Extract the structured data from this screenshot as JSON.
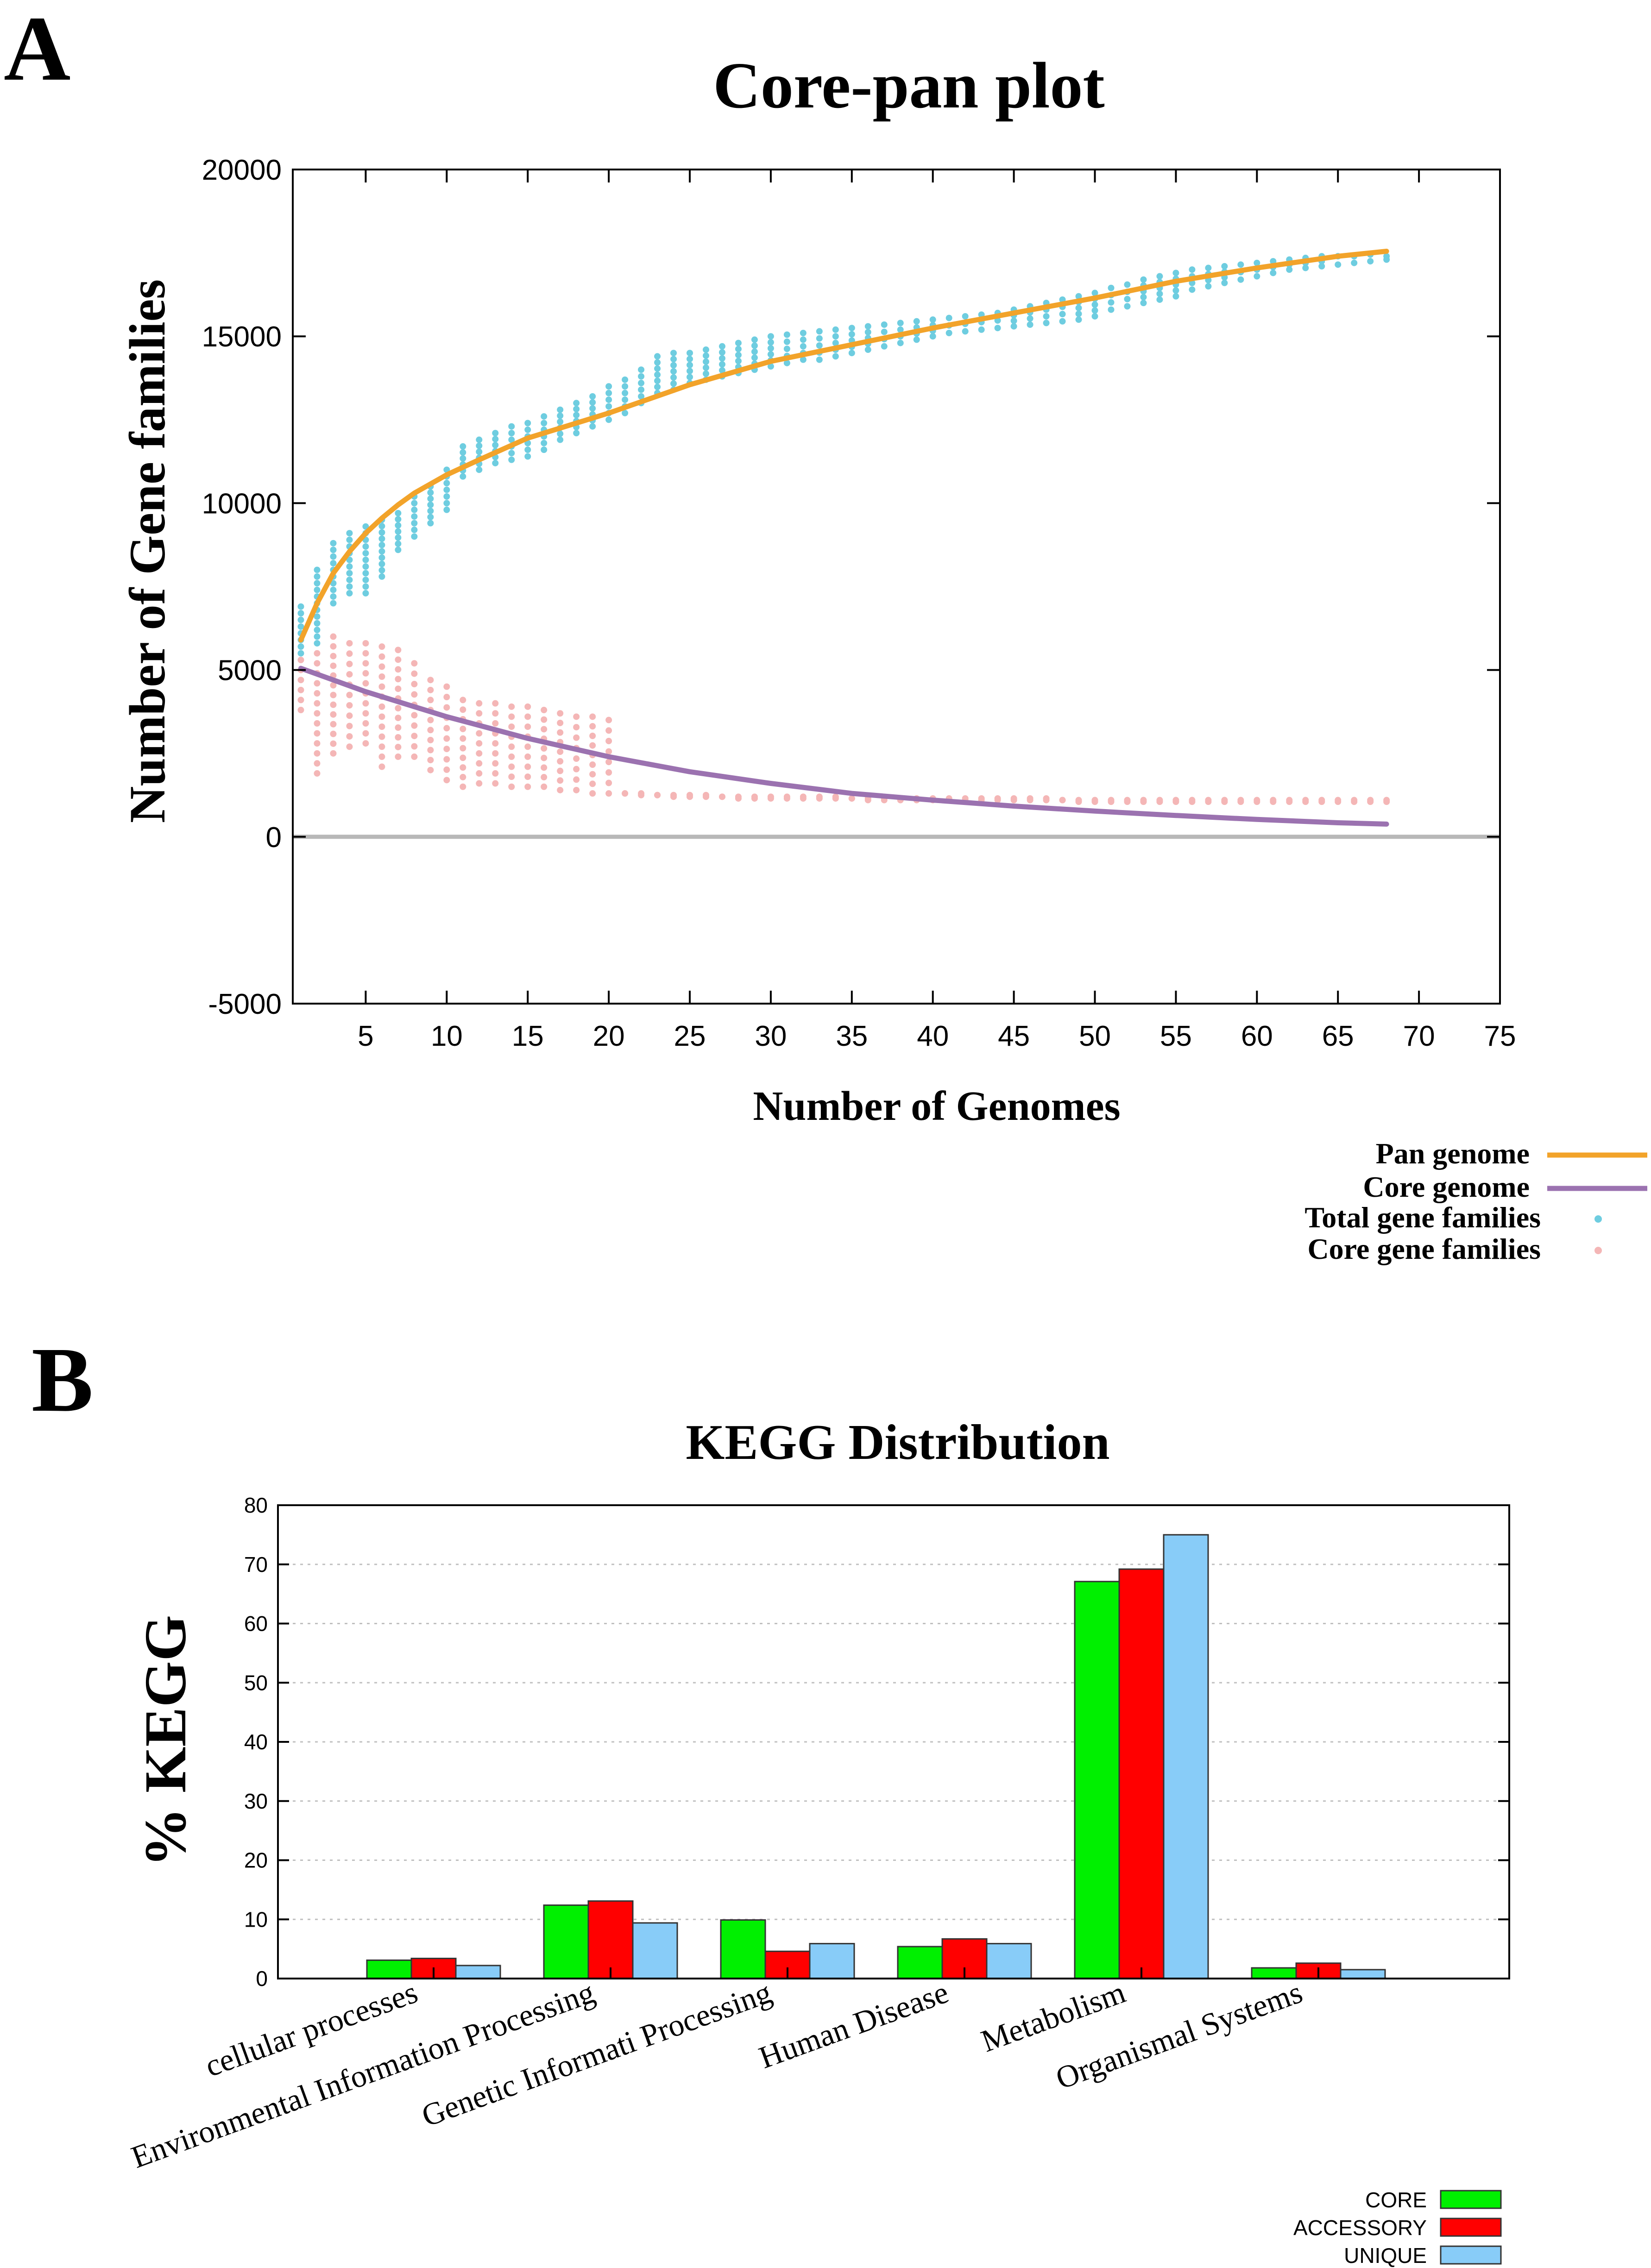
{
  "panels": {
    "a": {
      "letter": "A"
    },
    "b": {
      "letter": "B"
    }
  },
  "chart_data": [
    {
      "type": "line",
      "title": "Core-pan plot",
      "xlabel": "Number of Genomes",
      "ylabel": "Number of Gene families",
      "xlim": [
        0.5,
        75
      ],
      "ylim": [
        -5000,
        20000
      ],
      "xticks": [
        5,
        10,
        15,
        20,
        25,
        30,
        35,
        40,
        45,
        50,
        55,
        60,
        65,
        70,
        75
      ],
      "yticks": [
        -5000,
        0,
        5000,
        10000,
        15000,
        20000
      ],
      "grid": false,
      "legend_position": "bottom-right",
      "colors": {
        "pan": "#f2a32a",
        "core": "#9b72b0",
        "total": "#6ecde0",
        "core_points": "#f4b6b6",
        "zero": "#b8b8b8"
      },
      "series": [
        {
          "name": "Pan genome",
          "kind": "line",
          "x": [
            1,
            2,
            3,
            4,
            5,
            6,
            7,
            8,
            10,
            12,
            15,
            20,
            25,
            30,
            35,
            40,
            45,
            50,
            55,
            60,
            65,
            68
          ],
          "y": [
            5900,
            7000,
            7900,
            8550,
            9100,
            9550,
            9950,
            10300,
            10850,
            11300,
            11950,
            12700,
            13550,
            14250,
            14750,
            15250,
            15700,
            16150,
            16650,
            17050,
            17400,
            17550
          ]
        },
        {
          "name": "Core genome",
          "kind": "line",
          "x": [
            1,
            5,
            10,
            15,
            20,
            25,
            30,
            35,
            40,
            45,
            50,
            55,
            60,
            65,
            68
          ],
          "y": [
            5050,
            4350,
            3600,
            2950,
            2400,
            1950,
            1600,
            1300,
            1100,
            920,
            770,
            640,
            520,
            420,
            380
          ]
        },
        {
          "name": "Total gene families",
          "kind": "points",
          "x": [
            1,
            2,
            3,
            4,
            5,
            6,
            7,
            8,
            9,
            10,
            11,
            12,
            13,
            14,
            15,
            16,
            17,
            18,
            19,
            20,
            21,
            22,
            23,
            24,
            25,
            26,
            27,
            28,
            29,
            30,
            31,
            32,
            33,
            34,
            35,
            36,
            37,
            38,
            39,
            40,
            41,
            42,
            43,
            44,
            45,
            46,
            47,
            48,
            49,
            50,
            51,
            52,
            53,
            54,
            55,
            56,
            57,
            58,
            59,
            60,
            61,
            62,
            63,
            64,
            65,
            66,
            67,
            68
          ],
          "min": [
            5500,
            5800,
            7000,
            7300,
            7300,
            7800,
            8600,
            9000,
            9400,
            9800,
            10800,
            11000,
            11200,
            11300,
            11400,
            11600,
            11900,
            12100,
            12300,
            12500,
            12700,
            13000,
            13300,
            13400,
            13600,
            13700,
            13800,
            13900,
            14000,
            14100,
            14200,
            14300,
            14300,
            14400,
            14500,
            14600,
            14700,
            14800,
            14900,
            15000,
            15100,
            15150,
            15200,
            15250,
            15300,
            15350,
            15400,
            15450,
            15500,
            15600,
            15800,
            15900,
            16000,
            16100,
            16200,
            16400,
            16500,
            16600,
            16700,
            16800,
            16900,
            17000,
            17050,
            17100,
            17150,
            17200,
            17250,
            17300
          ],
          "max": [
            6900,
            8000,
            8800,
            9100,
            9300,
            9500,
            9700,
            10200,
            10500,
            11000,
            11700,
            11900,
            12100,
            12300,
            12400,
            12600,
            12800,
            13000,
            13200,
            13500,
            13700,
            14000,
            14400,
            14500,
            14500,
            14600,
            14700,
            14800,
            14900,
            15000,
            15050,
            15100,
            15150,
            15200,
            15250,
            15300,
            15350,
            15400,
            15450,
            15500,
            15550,
            15600,
            15650,
            15700,
            15800,
            15900,
            16000,
            16100,
            16200,
            16300,
            16450,
            16550,
            16700,
            16800,
            16900,
            17000,
            17050,
            17100,
            17150,
            17200,
            17250,
            17300,
            17350,
            17400,
            17400,
            17400,
            17450,
            17400
          ]
        },
        {
          "name": "Core gene families",
          "kind": "points",
          "x": [
            1,
            2,
            3,
            4,
            5,
            6,
            7,
            8,
            9,
            10,
            11,
            12,
            13,
            14,
            15,
            16,
            17,
            18,
            19,
            20,
            21,
            22,
            23,
            24,
            25,
            26,
            27,
            28,
            29,
            30,
            31,
            32,
            33,
            34,
            35,
            36,
            37,
            38,
            39,
            40,
            41,
            42,
            43,
            44,
            45,
            46,
            47,
            48,
            49,
            50,
            51,
            52,
            53,
            54,
            55,
            56,
            57,
            58,
            59,
            60,
            61,
            62,
            63,
            64,
            65,
            66,
            67,
            68
          ],
          "min": [
            3800,
            1900,
            2500,
            2700,
            2800,
            2100,
            2400,
            2400,
            2000,
            1700,
            1500,
            1600,
            1600,
            1500,
            1500,
            1500,
            1400,
            1400,
            1300,
            1300,
            1300,
            1250,
            1250,
            1200,
            1200,
            1200,
            1200,
            1150,
            1150,
            1150,
            1150,
            1150,
            1150,
            1150,
            1150,
            1100,
            1100,
            1100,
            1100,
            1100,
            1100,
            1100,
            1100,
            1100,
            1100,
            1100,
            1100,
            1100,
            1050,
            1050,
            1050,
            1050,
            1050,
            1050,
            1050,
            1050,
            1050,
            1050,
            1050,
            1050,
            1050,
            1050,
            1050,
            1050,
            1050,
            1050,
            1050,
            1050
          ],
          "max": [
            5300,
            5500,
            6000,
            5800,
            5800,
            5700,
            5600,
            5200,
            4700,
            4500,
            4100,
            4000,
            4000,
            3900,
            3900,
            3800,
            3700,
            3600,
            3600,
            3500,
            1300,
            1300,
            1250,
            1250,
            1250,
            1250,
            1200,
            1200,
            1200,
            1200,
            1200,
            1200,
            1200,
            1200,
            1150,
            1150,
            1150,
            1150,
            1150,
            1150,
            1150,
            1150,
            1150,
            1150,
            1150,
            1150,
            1150,
            1100,
            1100,
            1100,
            1100,
            1100,
            1100,
            1100,
            1100,
            1100,
            1100,
            1100,
            1100,
            1100,
            1100,
            1100,
            1100,
            1100,
            1100,
            1100,
            1100,
            1100
          ]
        }
      ]
    },
    {
      "type": "bar",
      "title": "KEGG Distribution",
      "xlabel": "",
      "ylabel": "% KEGG",
      "ylim": [
        0,
        80
      ],
      "yticks": [
        0,
        10,
        20,
        30,
        40,
        50,
        60,
        70,
        80
      ],
      "grid": true,
      "legend_position": "bottom-right",
      "categories": [
        "cellular processes",
        "Environmental Information Processing",
        "Genetic Informati Processing",
        "Human Disease",
        "Metabolism",
        "Organismal Systems"
      ],
      "series": [
        {
          "name": "CORE",
          "color": "#00f000",
          "values": [
            3.1,
            12.4,
            9.9,
            5.4,
            67.1,
            1.8
          ]
        },
        {
          "name": "ACCESSORY",
          "color": "#ff0000",
          "values": [
            3.4,
            13.1,
            4.6,
            6.7,
            69.2,
            2.6
          ]
        },
        {
          "name": "UNIQUE",
          "color": "#88ccf8",
          "values": [
            2.2,
            9.4,
            5.9,
            5.9,
            75.0,
            1.5
          ]
        }
      ]
    }
  ]
}
